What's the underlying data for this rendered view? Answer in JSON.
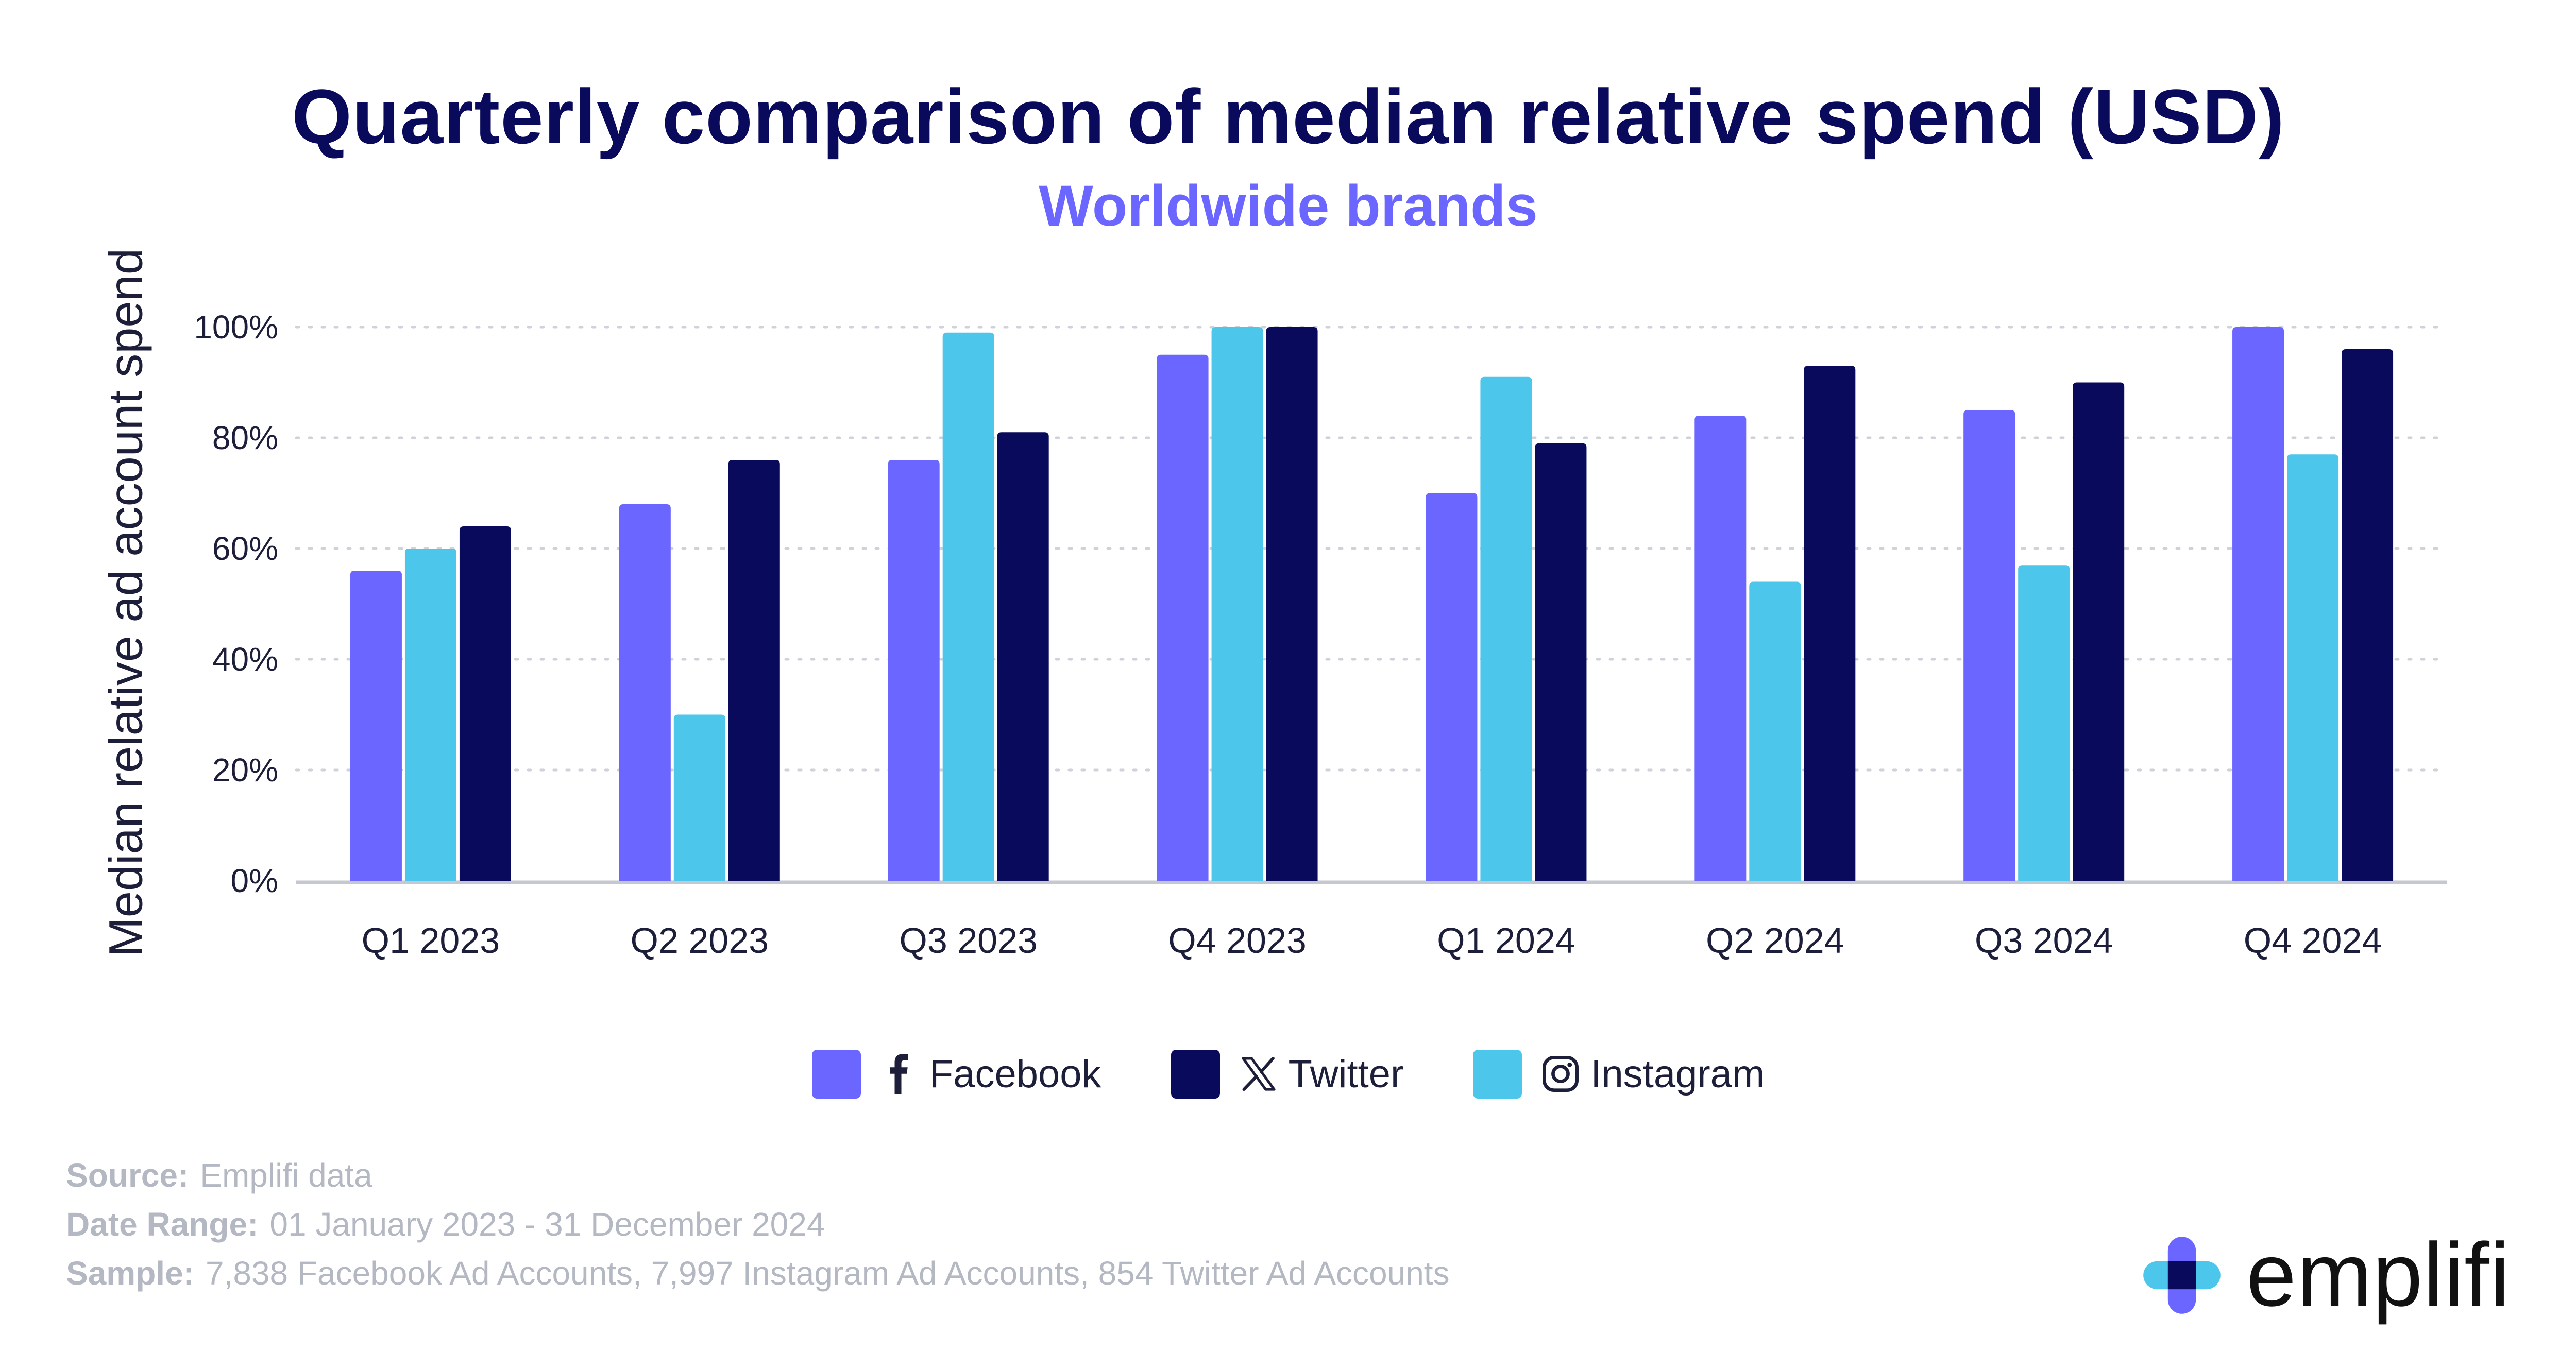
{
  "header": {
    "title": "Quarterly comparison of median relative spend (USD)",
    "subtitle": "Worldwide brands"
  },
  "colors": {
    "title": "#0a0a5c",
    "subtitle": "#6b66ff",
    "facebook": "#6b66ff",
    "twitter": "#0a0a5c",
    "instagram": "#4cc6ea",
    "grid": "#cfd2d9",
    "footer": "#b4b8c3"
  },
  "chart_data": {
    "type": "bar",
    "ylabel": "Median relative ad account spend",
    "xlabel": "",
    "ylim": [
      0,
      100
    ],
    "yticks": [
      0,
      20,
      40,
      60,
      80,
      100
    ],
    "ytick_labels": [
      "0%",
      "20%",
      "40%",
      "60%",
      "80%",
      "100%"
    ],
    "grid": true,
    "grid_style": "dotted",
    "legend_position": "bottom-center",
    "categories": [
      "Q1 2023",
      "Q2 2023",
      "Q3 2023",
      "Q4 2023",
      "Q1 2024",
      "Q2 2024",
      "Q3 2024",
      "Q4 2024"
    ],
    "series": [
      {
        "name": "Facebook",
        "key": "facebook",
        "values": [
          56,
          68,
          76,
          95,
          70,
          84,
          85,
          100
        ]
      },
      {
        "name": "Instagram",
        "key": "instagram",
        "values": [
          60,
          30,
          99,
          100,
          91,
          54,
          57,
          77
        ]
      },
      {
        "name": "Twitter",
        "key": "twitter",
        "values": [
          64,
          76,
          81,
          100,
          79,
          93,
          90,
          96
        ]
      }
    ]
  },
  "legend": {
    "items": [
      {
        "label": "Facebook",
        "icon": "facebook-icon",
        "color": "#6b66ff"
      },
      {
        "label": "Twitter",
        "icon": "x-icon",
        "color": "#0a0a5c"
      },
      {
        "label": "Instagram",
        "icon": "instagram-icon",
        "color": "#4cc6ea"
      }
    ]
  },
  "footer": {
    "source_key": "Source:",
    "source_value": "Emplifi data",
    "range_key": "Date Range:",
    "range_value": "01 January 2023 - 31 December 2024",
    "sample_key": "Sample:",
    "sample_value": "7,838 Facebook Ad Accounts, 7,997 Instagram Ad Accounts, 854 Twitter Ad Accounts"
  },
  "brand": {
    "name": "emplifi",
    "icon": "emplifi-logo-icon"
  }
}
